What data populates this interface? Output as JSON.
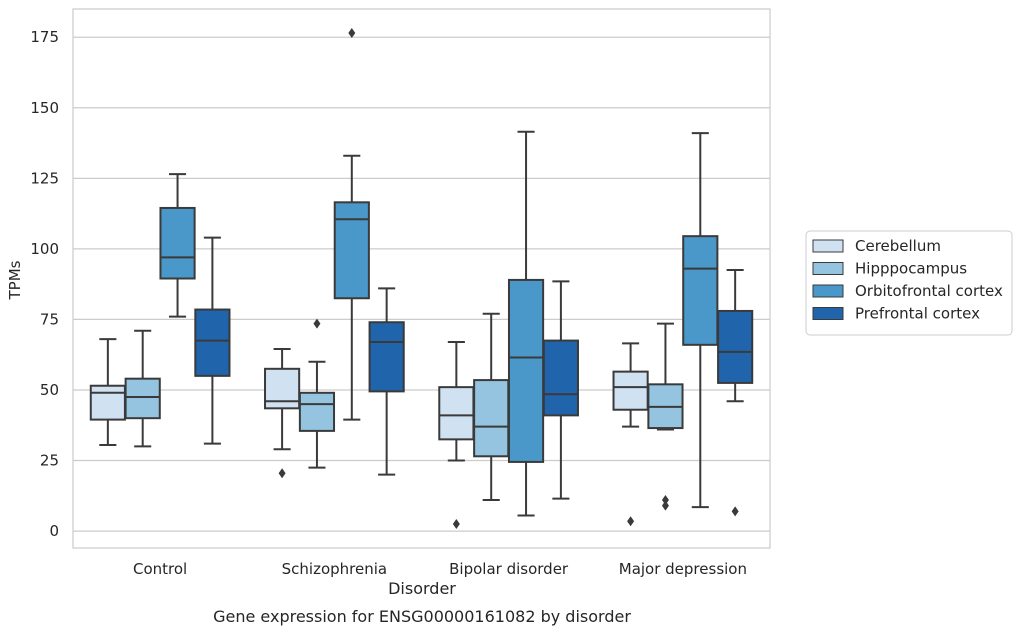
{
  "chart_data": {
    "type": "box",
    "title": "Gene expression for ENSG00000161082 by disorder",
    "xlabel": "Disorder",
    "ylabel": "TPMs",
    "categories": [
      "Control",
      "Schizophrenia",
      "Bipolar disorder",
      "Major depression"
    ],
    "ylim": [
      -6,
      185
    ],
    "yticks": [
      0,
      25,
      50,
      75,
      100,
      125,
      150,
      175
    ],
    "grid": true,
    "legend_position": "right",
    "series": [
      {
        "name": "Cerebellum",
        "color": "#d0e1f2",
        "boxes": [
          {
            "whislo": 30.5,
            "q1": 39.5,
            "med": 49,
            "q3": 51.5,
            "whishi": 68,
            "fliers": []
          },
          {
            "whislo": 29,
            "q1": 43.5,
            "med": 46,
            "q3": 57.5,
            "whishi": 64.5,
            "fliers": [
              20.5
            ]
          },
          {
            "whislo": 25,
            "q1": 32.5,
            "med": 41,
            "q3": 51,
            "whishi": 67,
            "fliers": [
              2.5
            ]
          },
          {
            "whislo": 37,
            "q1": 43,
            "med": 51,
            "q3": 56.5,
            "whishi": 66.5,
            "fliers": [
              3.5
            ]
          }
        ]
      },
      {
        "name": "Hipppocampus",
        "color": "#94c4df",
        "boxes": [
          {
            "whislo": 30,
            "q1": 40,
            "med": 47.5,
            "q3": 54,
            "whishi": 71,
            "fliers": []
          },
          {
            "whislo": 22.5,
            "q1": 35.5,
            "med": 45,
            "q3": 49,
            "whishi": 60,
            "fliers": [
              73.5
            ]
          },
          {
            "whislo": 11,
            "q1": 26.5,
            "med": 37,
            "q3": 53.5,
            "whishi": 77,
            "fliers": []
          },
          {
            "whislo": 36,
            "q1": 36.5,
            "med": 44,
            "q3": 52,
            "whishi": 73.5,
            "fliers": [
              11,
              9
            ]
          }
        ]
      },
      {
        "name": "Orbitofrontal cortex",
        "color": "#4a98c9",
        "boxes": [
          {
            "whislo": 76,
            "q1": 89.5,
            "med": 97,
            "q3": 114.5,
            "whishi": 126.5,
            "fliers": []
          },
          {
            "whislo": 39.5,
            "q1": 82.5,
            "med": 110.5,
            "q3": 116.5,
            "whishi": 133,
            "fliers": [
              176.5
            ]
          },
          {
            "whislo": 5.5,
            "q1": 24.5,
            "med": 61.5,
            "q3": 89,
            "whishi": 141.5,
            "fliers": []
          },
          {
            "whislo": 8.5,
            "q1": 66,
            "med": 93,
            "q3": 104.5,
            "whishi": 141,
            "fliers": []
          }
        ]
      },
      {
        "name": "Prefrontal cortex",
        "color": "#2064ac",
        "boxes": [
          {
            "whislo": 31,
            "q1": 55,
            "med": 67.5,
            "q3": 78.5,
            "whishi": 104,
            "fliers": []
          },
          {
            "whislo": 20,
            "q1": 49.5,
            "med": 67,
            "q3": 74,
            "whishi": 86,
            "fliers": []
          },
          {
            "whislo": 11.5,
            "q1": 41,
            "med": 48.5,
            "q3": 67.5,
            "whishi": 88.5,
            "fliers": []
          },
          {
            "whislo": 46,
            "q1": 52.5,
            "med": 63.5,
            "q3": 78,
            "whishi": 92.5,
            "fliers": [
              7
            ]
          }
        ]
      }
    ]
  }
}
